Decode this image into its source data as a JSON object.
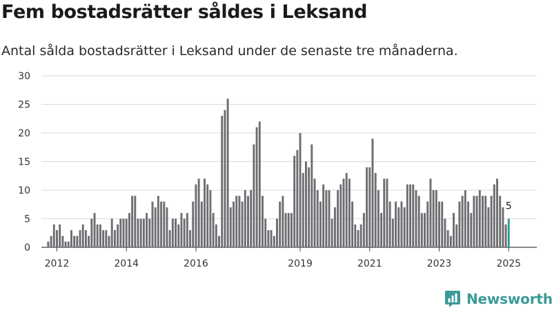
{
  "header": {
    "title": "Fem bostadsrätter såldes i Leksand",
    "subtitle": "Antal sålda bostadsrätter i Leksand under de senaste tre månaderna."
  },
  "brand": {
    "name": "Newsworthy",
    "icon": "newsworthy-logo-icon",
    "color": "#3a9a98"
  },
  "chart_data": {
    "type": "bar",
    "title": "Fem bostadsrätter såldes i Leksand",
    "subtitle": "Antal sålda bostadsrätter i Leksand under de senaste tre månaderna.",
    "xlabel": "",
    "ylabel": "",
    "ylim": [
      0,
      30
    ],
    "y_ticks": [
      0,
      5,
      10,
      15,
      20,
      25,
      30
    ],
    "x_tick_labels": [
      {
        "label": "2012",
        "index": 5
      },
      {
        "label": "2014",
        "index": 29
      },
      {
        "label": "2016",
        "index": 53
      },
      {
        "label": "2019",
        "index": 89
      },
      {
        "label": "2021",
        "index": 113
      },
      {
        "label": "2023",
        "index": 137
      },
      {
        "label": "2025",
        "index": 161
      }
    ],
    "grid": true,
    "bar_color": "#6e6d72",
    "highlight_color": "#2f9a98",
    "highlight_label": "5",
    "values": [
      0,
      0,
      1,
      2,
      4,
      3,
      4,
      2,
      1,
      1,
      3,
      2,
      2,
      3,
      4,
      3,
      2,
      5,
      6,
      4,
      4,
      3,
      3,
      2,
      5,
      3,
      4,
      5,
      5,
      5,
      6,
      9,
      9,
      5,
      5,
      5,
      6,
      5,
      8,
      7,
      9,
      8,
      8,
      7,
      3,
      5,
      5,
      4,
      6,
      5,
      6,
      3,
      8,
      11,
      12,
      8,
      12,
      11,
      10,
      6,
      4,
      2,
      23,
      24,
      26,
      7,
      8,
      9,
      9,
      8,
      10,
      9,
      10,
      18,
      21,
      22,
      9,
      5,
      3,
      3,
      2,
      5,
      8,
      9,
      6,
      6,
      6,
      16,
      17,
      20,
      13,
      15,
      14,
      18,
      12,
      10,
      8,
      11,
      10,
      10,
      5,
      7,
      10,
      11,
      12,
      13,
      12,
      8,
      4,
      3,
      4,
      6,
      14,
      14,
      19,
      13,
      10,
      6,
      12,
      12,
      8,
      5,
      8,
      7,
      8,
      7,
      11,
      11,
      11,
      10,
      9,
      6,
      6,
      8,
      12,
      10,
      10,
      8,
      8,
      5,
      3,
      2,
      6,
      4,
      8,
      9,
      10,
      8,
      6,
      9,
      9,
      10,
      9,
      9,
      7,
      9,
      11,
      12,
      9,
      7,
      4,
      5
    ]
  }
}
